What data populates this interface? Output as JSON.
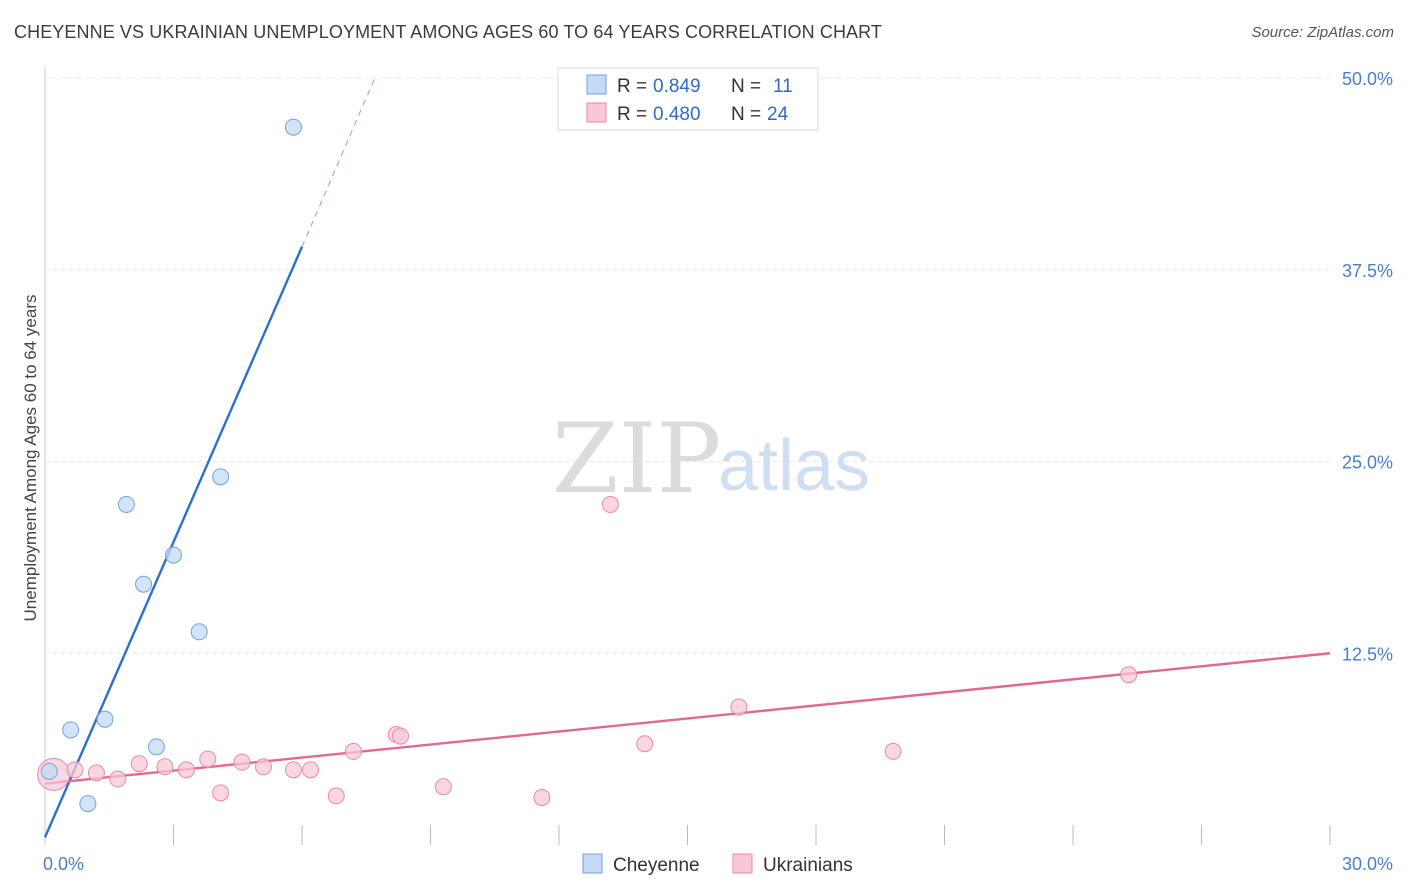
{
  "title": "CHEYENNE VS UKRAINIAN UNEMPLOYMENT AMONG AGES 60 TO 64 YEARS CORRELATION CHART",
  "source": "Source: ZipAtlas.com",
  "watermark": {
    "zip": "ZIP",
    "atlas": "atlas"
  },
  "legend": {
    "r_label": "R =",
    "n_label": "N =",
    "entries": [
      {
        "r": "0.849",
        "n": "11"
      },
      {
        "r": "0.480",
        "n": "24"
      }
    ]
  },
  "chart_data": {
    "type": "scatter",
    "title": "CHEYENNE VS UKRAINIAN UNEMPLOYMENT AMONG AGES 60 TO 64 YEARS CORRELATION CHART",
    "xlabel": "",
    "ylabel": "Unemployment Among Ages 60 to 64 years",
    "xlim": [
      0,
      30
    ],
    "ylim": [
      0,
      50
    ],
    "x_tick_labels": [
      "0.0%",
      "30.0%"
    ],
    "y_ticks": [
      12.5,
      25.0,
      37.5,
      50.0
    ],
    "y_tick_labels": [
      "12.5%",
      "25.0%",
      "37.5%",
      "50.0%"
    ],
    "grid": true,
    "legend_position": "bottom-center",
    "series": [
      {
        "name": "Cheyenne",
        "color": "#6fa3e0",
        "fill": "#c4daf6",
        "line_color": "#2f6fcc",
        "r": "0.849",
        "n": "11",
        "points": [
          [
            0.1,
            4.8
          ],
          [
            0.6,
            7.5
          ],
          [
            1.0,
            2.7
          ],
          [
            1.4,
            8.2
          ],
          [
            1.9,
            22.2
          ],
          [
            2.3,
            17.0
          ],
          [
            2.6,
            6.4
          ],
          [
            3.0,
            18.9
          ],
          [
            3.6,
            13.9
          ],
          [
            4.1,
            24.0
          ],
          [
            5.8,
            46.8
          ]
        ],
        "trend": {
          "x1": 0.0,
          "y1": 0.5,
          "x2": 6.0,
          "y2": 39.0,
          "x_dash_end": 7.7,
          "y_dash_end": 50.0
        }
      },
      {
        "name": "Ukrainians",
        "color": "#e98aa8",
        "fill": "#f8c8d7",
        "line_color": "#e26891",
        "r": "0.480",
        "n": "24",
        "points": [
          [
            0.2,
            4.6
          ],
          [
            0.7,
            4.9
          ],
          [
            1.2,
            4.7
          ],
          [
            1.7,
            4.3
          ],
          [
            2.2,
            5.3
          ],
          [
            2.8,
            5.1
          ],
          [
            3.3,
            4.9
          ],
          [
            3.8,
            5.6
          ],
          [
            4.1,
            3.4
          ],
          [
            4.6,
            5.4
          ],
          [
            5.1,
            5.1
          ],
          [
            5.8,
            4.9
          ],
          [
            6.2,
            4.9
          ],
          [
            6.8,
            3.2
          ],
          [
            7.2,
            6.1
          ],
          [
            8.2,
            7.2
          ],
          [
            8.3,
            7.1
          ],
          [
            9.3,
            3.8
          ],
          [
            11.6,
            3.1
          ],
          [
            13.2,
            22.2
          ],
          [
            14.0,
            6.6
          ],
          [
            16.2,
            9.0
          ],
          [
            19.8,
            6.1
          ],
          [
            25.3,
            11.1
          ]
        ],
        "trend": {
          "x1": 0.0,
          "y1": 4.0,
          "x2": 30.0,
          "y2": 12.5
        }
      }
    ]
  }
}
